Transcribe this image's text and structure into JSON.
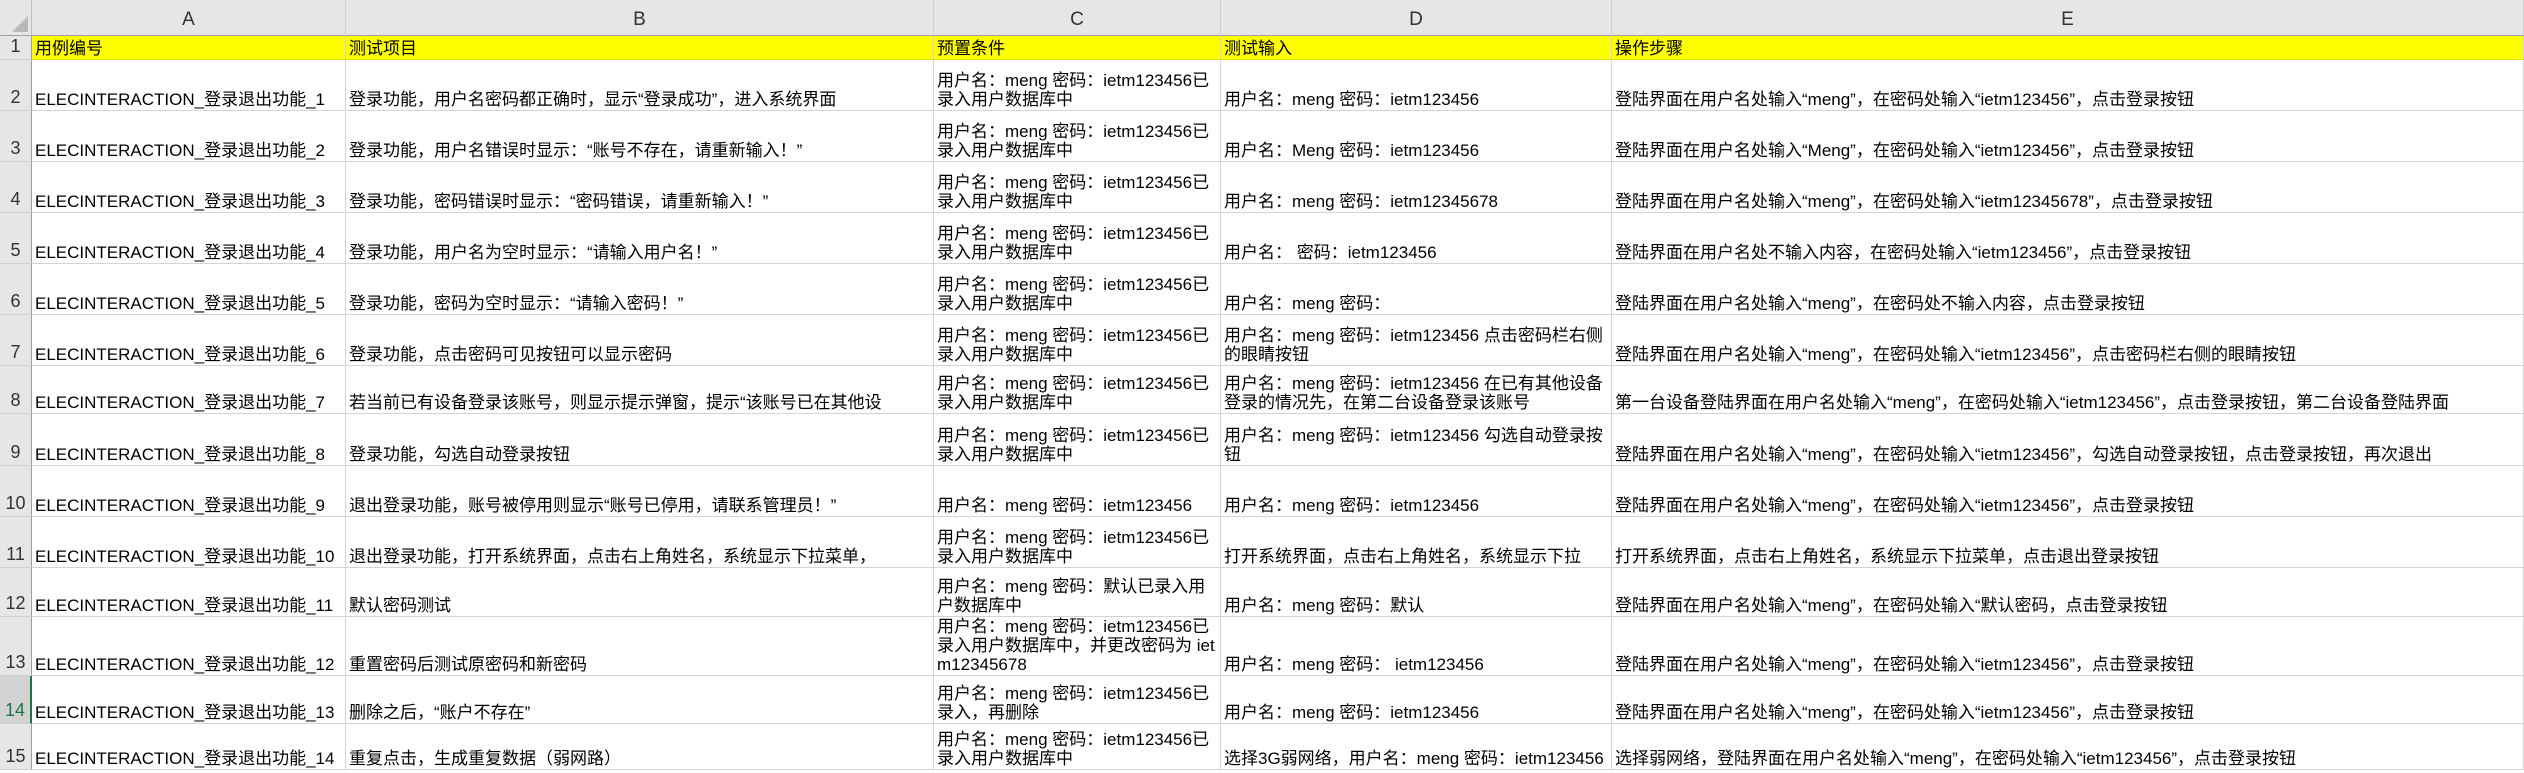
{
  "columns": [
    "A",
    "B",
    "C",
    "D",
    "E"
  ],
  "header_row": [
    "用例编号",
    "测试项目",
    "预置条件",
    "测试输入",
    "操作步骤"
  ],
  "selected_row": 14,
  "colors": {
    "header_fill": "#ffff00",
    "grid": "#d4d4d4",
    "selected_row_header": "#217346"
  },
  "rows": [
    [
      "ELECINTERACTION_登录退出功能_1",
      "登录功能，用户名密码都正确时，显示“登录成功”，进入系统界面",
      "用户名：meng 密码：ietm123456已录入用户数据库中",
      "用户名：meng 密码：ietm123456",
      "登陆界面在用户名处输入“meng”，在密码处输入“ietm123456”，点击登录按钮"
    ],
    [
      "ELECINTERACTION_登录退出功能_2",
      "登录功能，用户名错误时显示：“账号不存在，请重新输入！”",
      "用户名：meng 密码：ietm123456已录入用户数据库中",
      "用户名：Meng 密码：ietm123456",
      "登陆界面在用户名处输入“Meng”，在密码处输入“ietm123456”，点击登录按钮"
    ],
    [
      "ELECINTERACTION_登录退出功能_3",
      "登录功能，密码错误时显示：“密码错误，请重新输入！”",
      "用户名：meng 密码：ietm123456已录入用户数据库中",
      "用户名：meng 密码：ietm12345678",
      "登陆界面在用户名处输入“meng”，在密码处输入“ietm12345678”，点击登录按钮"
    ],
    [
      "ELECINTERACTION_登录退出功能_4",
      "登录功能，用户名为空时显示：“请输入用户名！”",
      "用户名：meng 密码：ietm123456已录入用户数据库中",
      "用户名：  密码：ietm123456",
      "登陆界面在用户名处不输入内容，在密码处输入“ietm123456”，点击登录按钮"
    ],
    [
      "ELECINTERACTION_登录退出功能_5",
      "登录功能，密码为空时显示：“请输入密码！”",
      "用户名：meng 密码：ietm123456已录入用户数据库中",
      "用户名：meng 密码：",
      "登陆界面在用户名处输入“meng”，在密码处不输入内容，点击登录按钮"
    ],
    [
      "ELECINTERACTION_登录退出功能_6",
      "登录功能，点击密码可见按钮可以显示密码",
      "用户名：meng 密码：ietm123456已录入用户数据库中",
      "用户名：meng 密码：ietm123456 点击密码栏右侧的眼睛按钮",
      "登陆界面在用户名处输入“meng”，在密码处输入“ietm123456”，点击密码栏右侧的眼睛按钮"
    ],
    [
      "ELECINTERACTION_登录退出功能_7",
      "若当前已有设备登录该账号，则显示提示弹窗，提示“该账号已在其他设",
      "用户名：meng 密码：ietm123456已录入用户数据库中",
      "用户名：meng 密码：ietm123456 在已有其他设备登录的情况先，在第二台设备登录该账号",
      "第一台设备登陆界面在用户名处输入“meng”，在密码处输入“ietm123456”，点击登录按钮，第二台设备登陆界面"
    ],
    [
      "ELECINTERACTION_登录退出功能_8",
      "登录功能，勾选自动登录按钮",
      "用户名：meng 密码：ietm123456已录入用户数据库中",
      "用户名：meng 密码：ietm123456 勾选自动登录按钮",
      "登陆界面在用户名处输入“meng”，在密码处输入“ietm123456”，勾选自动登录按钮，点击登录按钮，再次退出"
    ],
    [
      "ELECINTERACTION_登录退出功能_9",
      "退出登录功能，账号被停用则显示“账号已停用，请联系管理员！”",
      "用户名：meng 密码：ietm123456",
      "用户名：meng 密码：ietm123456",
      "登陆界面在用户名处输入“meng”，在密码处输入“ietm123456”，点击登录按钮"
    ],
    [
      "ELECINTERACTION_登录退出功能_10",
      "退出登录功能，打开系统界面，点击右上角姓名，系统显示下拉菜单，",
      "用户名：meng 密码：ietm123456已录入用户数据库中",
      "打开系统界面，点击右上角姓名，系统显示下拉",
      "打开系统界面，点击右上角姓名，系统显示下拉菜单，点击退出登录按钮"
    ],
    [
      "ELECINTERACTION_登录退出功能_11",
      "默认密码测试",
      "用户名：meng 密码：默认已录入用户数据库中",
      "用户名：meng 密码：默认",
      "登陆界面在用户名处输入“meng”，在密码处输入“默认密码，点击登录按钮"
    ],
    [
      "ELECINTERACTION_登录退出功能_12",
      "重置密码后测试原密码和新密码",
      "用户名：meng 密码：ietm123456已录入用户数据库中，并更改密码为 ietm12345678",
      "用户名：meng 密码： ietm123456",
      "登陆界面在用户名处输入“meng”，在密码处输入“ietm123456”，点击登录按钮"
    ],
    [
      "ELECINTERACTION_登录退出功能_13",
      "删除之后，“账户不存在”",
      "用户名：meng 密码：ietm123456已录入，再删除",
      "用户名：meng 密码：ietm123456",
      "登陆界面在用户名处输入“meng”，在密码处输入“ietm123456”，点击登录按钮"
    ],
    [
      "ELECINTERACTION_登录退出功能_14",
      "重复点击，生成重复数据（弱网路）",
      "用户名：meng 密码：ietm123456已录入用户数据库中",
      "选择3G弱网络，用户名：meng 密码：ietm123456",
      "选择弱网络，登陆界面在用户名处输入“meng”，在密码处输入“ietm123456”，点击登录按钮"
    ]
  ]
}
